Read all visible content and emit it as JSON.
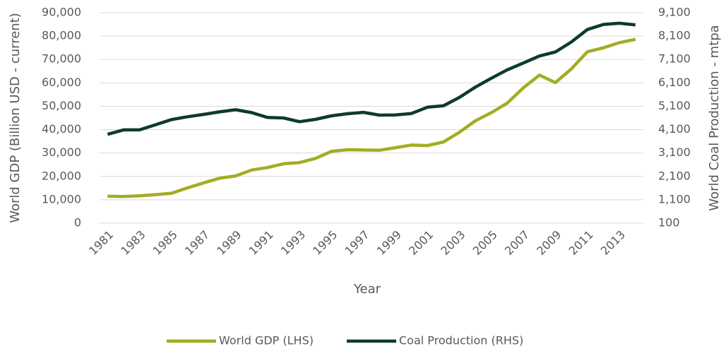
{
  "chart_data": {
    "type": "line",
    "xlabel": "Year",
    "ylabel": "World GDP (Billion USD - current)",
    "y2label": "World Coal Production - mtpa",
    "categories": [
      "1981",
      null,
      "1983",
      null,
      "1985",
      null,
      "1987",
      null,
      "1989",
      null,
      "1991",
      null,
      "1993",
      null,
      "1995",
      null,
      "1997",
      null,
      "1999",
      null,
      "2001",
      null,
      "2003",
      null,
      "2005",
      null,
      "2007",
      null,
      "2009",
      null,
      "2011",
      null,
      "2013",
      null
    ],
    "series": [
      {
        "name": "World GDP (LHS)",
        "color": "#a2ad23",
        "values": [
          11500,
          11400,
          11700,
          12200,
          12800,
          15100,
          17200,
          19200,
          20200,
          22700,
          23800,
          25400,
          25900,
          27700,
          30700,
          31400,
          31300,
          31200,
          32300,
          33400,
          33200,
          34700,
          38900,
          43800,
          47300,
          51400,
          57900,
          63300,
          60100,
          66000,
          73300,
          75000,
          77200,
          78600
        ]
      },
      {
        "name": "Coal Production (RHS)",
        "color": "#0d3b2e",
        "axis": "y2",
        "values": [
          3900,
          4090,
          4090,
          4310,
          4530,
          4650,
          4750,
          4860,
          4950,
          4830,
          4620,
          4600,
          4440,
          4540,
          4690,
          4780,
          4840,
          4720,
          4730,
          4790,
          5060,
          5120,
          5480,
          5920,
          6300,
          6660,
          6950,
          7250,
          7420,
          7850,
          8380,
          8600,
          8650,
          8580
        ]
      }
    ],
    "ylim": [
      0,
      90000
    ],
    "yticks": [
      0,
      {
        "value": 10000,
        "label": "10,000"
      },
      {
        "value": 20000,
        "label": "20,000"
      },
      {
        "value": 30000,
        "label": "30,000"
      },
      {
        "value": 40000,
        "label": "40,000"
      },
      {
        "value": 50000,
        "label": "50,000"
      },
      {
        "value": 60000,
        "label": "60,000"
      },
      {
        "value": 70000,
        "label": "70,000"
      },
      {
        "value": 80000,
        "label": "80,000"
      },
      {
        "value": 90000,
        "label": "90,000"
      }
    ],
    "y2lim": [
      100,
      9100
    ],
    "y2ticks": [
      100,
      {
        "value": 1100,
        "label": "1,100"
      },
      {
        "value": 2100,
        "label": "2,100"
      },
      {
        "value": 3100,
        "label": "3,100"
      },
      {
        "value": 4100,
        "label": "4,100"
      },
      {
        "value": 5100,
        "label": "5,100"
      },
      {
        "value": 6100,
        "label": "6,100"
      },
      {
        "value": 7100,
        "label": "7,100"
      },
      {
        "value": 8100,
        "label": "8,100"
      },
      {
        "value": 9100,
        "label": "9,100"
      }
    ],
    "grid": true,
    "legend": "bottom"
  }
}
